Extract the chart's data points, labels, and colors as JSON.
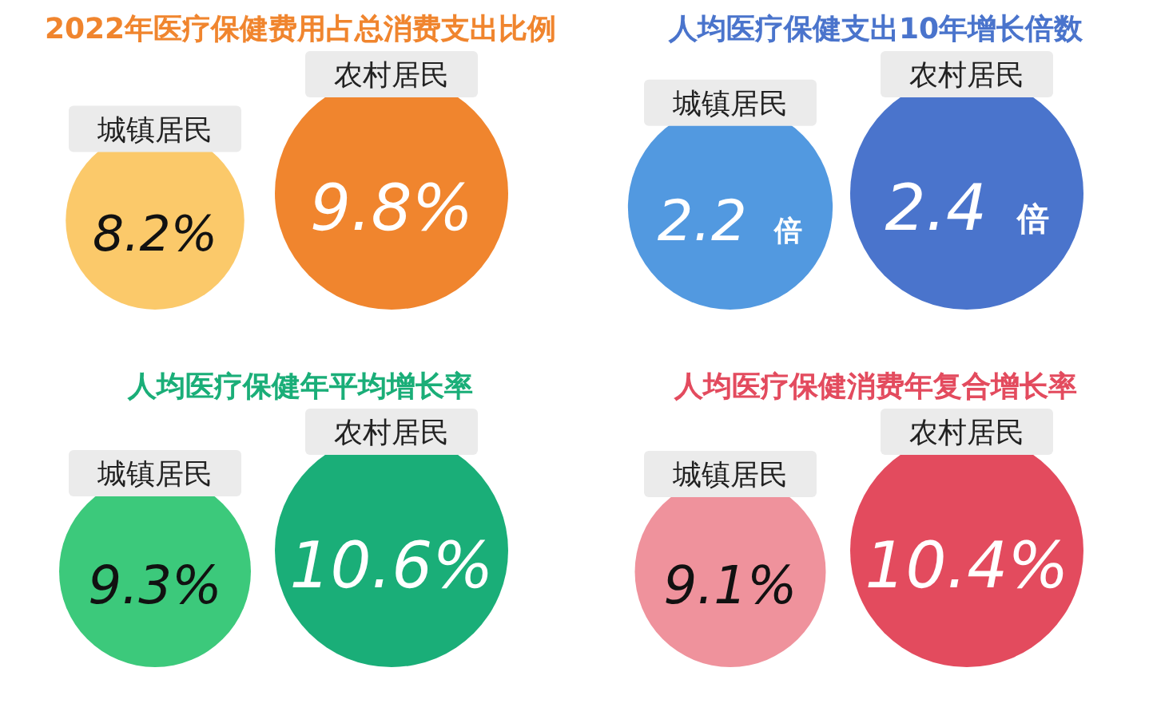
{
  "chart_data": [
    {
      "type": "other",
      "title": "2022年医疗保健费用占总消费支出比例",
      "series": [
        {
          "name": "城镇居民",
          "color": "#fbc96a",
          "values": [
            8.2
          ],
          "value_labels": [
            "8.2%"
          ]
        },
        {
          "name": "农村居民",
          "color": "#f0852e",
          "values": [
            9.8
          ],
          "value_labels": [
            "9.8%"
          ]
        }
      ]
    },
    {
      "type": "other",
      "title": "人均医疗保健支出10年增长倍数",
      "series": [
        {
          "name": "城镇居民",
          "color": "#5299e0",
          "values": [
            2.2
          ],
          "value_labels": [
            "2.2 倍"
          ]
        },
        {
          "name": "农村居民",
          "color": "#4a74cc",
          "values": [
            2.4
          ],
          "value_labels": [
            "2.4 倍"
          ]
        }
      ]
    },
    {
      "type": "other",
      "title": "人均医疗保健年平均增长率",
      "series": [
        {
          "name": "城镇居民",
          "color": "#3cc97b",
          "values": [
            9.3
          ],
          "value_labels": [
            "9.3%"
          ]
        },
        {
          "name": "农村居民",
          "color": "#1aae78",
          "values": [
            10.6
          ],
          "value_labels": [
            "10.6%"
          ]
        }
      ]
    },
    {
      "type": "other",
      "title": "人均医疗保健消费年复合增长率",
      "series": [
        {
          "name": "城镇居民",
          "color": "#ef929c",
          "values": [
            9.1
          ],
          "value_labels": [
            "9.1%"
          ]
        },
        {
          "name": "农村居民",
          "color": "#e34b5e",
          "values": [
            10.4
          ],
          "value_labels": [
            "10.4%"
          ]
        }
      ]
    }
  ]
}
